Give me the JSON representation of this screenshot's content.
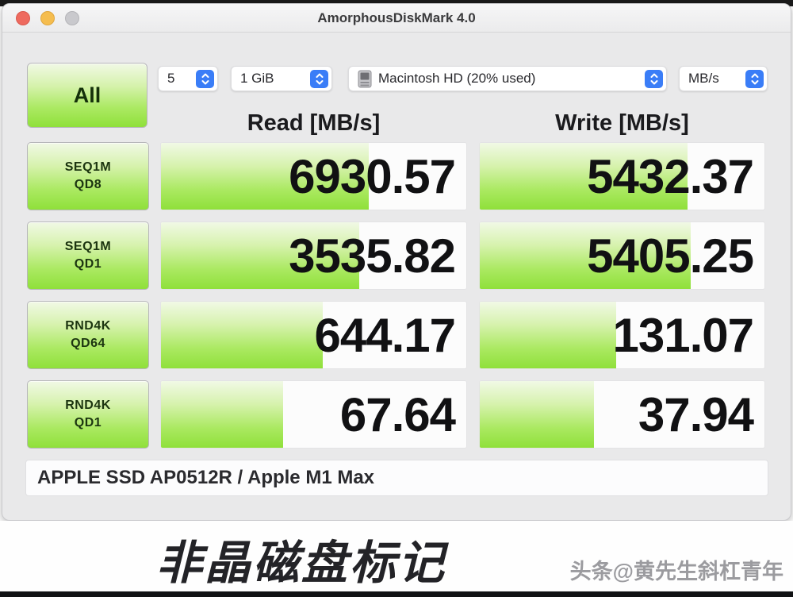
{
  "window": {
    "title": "AmorphousDiskMark 4.0",
    "toolbar": {
      "all_label": "All",
      "test_count": "5",
      "test_size": "1 GiB",
      "volume": "Macintosh HD (20% used)",
      "units": "MB/s"
    },
    "columns": {
      "read": "Read [MB/s]",
      "write": "Write [MB/s]"
    },
    "rows": [
      {
        "label_line1": "SEQ1M",
        "label_line2": "QD8",
        "read": "6930.57",
        "write": "5432.37",
        "read_fill_pct": 68,
        "write_fill_pct": 73
      },
      {
        "label_line1": "SEQ1M",
        "label_line2": "QD1",
        "read": "3535.82",
        "write": "5405.25",
        "read_fill_pct": 65,
        "write_fill_pct": 74
      },
      {
        "label_line1": "RND4K",
        "label_line2": "QD64",
        "read": "644.17",
        "write": "131.07",
        "read_fill_pct": 53,
        "write_fill_pct": 48
      },
      {
        "label_line1": "RND4K",
        "label_line2": "QD1",
        "read": "67.64",
        "write": "37.94",
        "read_fill_pct": 40,
        "write_fill_pct": 40
      }
    ],
    "footer": "APPLE SSD AP0512R / Apple M1 Max"
  },
  "caption": {
    "title": "非晶磁盘标记",
    "watermark": "头条@黄先生斜杠青年"
  },
  "icons": {
    "stepper": "up-down-chevrons-icon",
    "disk": "internal-drive-icon"
  },
  "colors": {
    "bar_green": "#8fe03a",
    "bar_green_light": "#f1f9e6",
    "stepper_blue": "#3a7df7",
    "traffic_close": "#ee6a5f",
    "traffic_minimize": "#f5bd4f",
    "traffic_zoom_disabled": "#c9c9cd",
    "window_bg": "#e9e9ea"
  }
}
